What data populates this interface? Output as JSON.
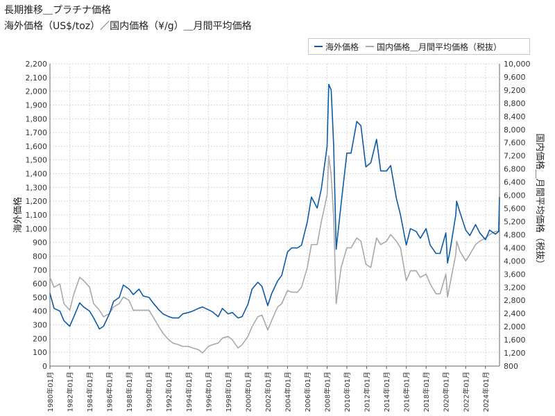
{
  "title_line1": "長期推移＿プラチナ価格",
  "title_line2": "海外価格（US$/toz）／国内価格（¥/g）＿月間平均価格",
  "chart_data": {
    "type": "line",
    "title": "長期推移＿プラチナ価格",
    "subtitle": "海外価格（US$/toz）／国内価格（¥/g）＿月間平均価格",
    "ylabel": "海外価格",
    "y2label": "国内価格＿月間平均価格（税抜）",
    "ylim": [
      0,
      2200
    ],
    "y2lim": [
      800,
      10000
    ],
    "yticks": [
      "0",
      "100",
      "200",
      "300",
      "400",
      "500",
      "600",
      "700",
      "800",
      "900",
      "1,000",
      "1,100",
      "1,200",
      "1,300",
      "1,400",
      "1,500",
      "1,600",
      "1,700",
      "1,800",
      "1,900",
      "2,000",
      "2,100",
      "2,200"
    ],
    "y2ticks": [
      "800",
      "1,200",
      "1,600",
      "2,000",
      "2,400",
      "2,800",
      "3,200",
      "3,600",
      "4,000",
      "4,400",
      "4,800",
      "5,200",
      "5,600",
      "6,000",
      "6,400",
      "6,800",
      "7,200",
      "7,600",
      "8,000",
      "8,400",
      "8,800",
      "9,200",
      "9,600",
      "10,000"
    ],
    "xticks": [
      "1980年01月",
      "1982年01月",
      "1984年01月",
      "1986年01月",
      "1988年01月",
      "1990年01月",
      "1992年01月",
      "1994年01月",
      "1996年01月",
      "1998年01月",
      "2000年01月",
      "2002年01月",
      "2004年01月",
      "2006年01月",
      "2008年01月",
      "2010年01月",
      "2012年01月",
      "2014年01月",
      "2016年01月",
      "2018年01月",
      "2020年01月",
      "2022年01月",
      "2024年01月"
    ],
    "grid": true,
    "legend_position": "top-right",
    "series": [
      {
        "name": "海外価格",
        "axis": "left",
        "color": "#0b5aa6",
        "points": [
          [
            "1980-01",
            530
          ],
          [
            "1980-06",
            420
          ],
          [
            "1981-01",
            400
          ],
          [
            "1981-06",
            330
          ],
          [
            "1982-01",
            290
          ],
          [
            "1982-06",
            360
          ],
          [
            "1983-01",
            460
          ],
          [
            "1983-06",
            430
          ],
          [
            "1984-01",
            400
          ],
          [
            "1984-06",
            350
          ],
          [
            "1985-01",
            270
          ],
          [
            "1985-06",
            290
          ],
          [
            "1986-01",
            380
          ],
          [
            "1986-06",
            470
          ],
          [
            "1987-01",
            500
          ],
          [
            "1987-06",
            590
          ],
          [
            "1988-01",
            560
          ],
          [
            "1988-06",
            520
          ],
          [
            "1989-01",
            560
          ],
          [
            "1989-06",
            510
          ],
          [
            "1990-01",
            500
          ],
          [
            "1990-06",
            460
          ],
          [
            "1991-01",
            410
          ],
          [
            "1991-06",
            380
          ],
          [
            "1992-01",
            360
          ],
          [
            "1992-06",
            350
          ],
          [
            "1993-01",
            350
          ],
          [
            "1993-06",
            380
          ],
          [
            "1994-01",
            390
          ],
          [
            "1994-06",
            400
          ],
          [
            "1995-01",
            420
          ],
          [
            "1995-06",
            430
          ],
          [
            "1996-01",
            410
          ],
          [
            "1996-06",
            395
          ],
          [
            "1997-01",
            360
          ],
          [
            "1997-06",
            420
          ],
          [
            "1998-01",
            380
          ],
          [
            "1998-06",
            390
          ],
          [
            "1999-01",
            350
          ],
          [
            "1999-06",
            360
          ],
          [
            "2000-01",
            450
          ],
          [
            "2000-06",
            560
          ],
          [
            "2001-01",
            610
          ],
          [
            "2001-06",
            580
          ],
          [
            "2002-01",
            440
          ],
          [
            "2002-06",
            530
          ],
          [
            "2003-01",
            620
          ],
          [
            "2003-06",
            660
          ],
          [
            "2004-01",
            830
          ],
          [
            "2004-06",
            860
          ],
          [
            "2005-01",
            860
          ],
          [
            "2005-06",
            880
          ],
          [
            "2006-01",
            1050
          ],
          [
            "2006-06",
            1230
          ],
          [
            "2007-01",
            1150
          ],
          [
            "2007-06",
            1290
          ],
          [
            "2008-01",
            1600
          ],
          [
            "2008-03",
            2050
          ],
          [
            "2008-06",
            2010
          ],
          [
            "2008-09",
            1600
          ],
          [
            "2008-12",
            850
          ],
          [
            "2009-06",
            1180
          ],
          [
            "2010-01",
            1550
          ],
          [
            "2010-06",
            1550
          ],
          [
            "2011-01",
            1780
          ],
          [
            "2011-06",
            1750
          ],
          [
            "2011-12",
            1450
          ],
          [
            "2012-06",
            1480
          ],
          [
            "2013-01",
            1650
          ],
          [
            "2013-06",
            1420
          ],
          [
            "2014-01",
            1420
          ],
          [
            "2014-06",
            1460
          ],
          [
            "2015-01",
            1220
          ],
          [
            "2015-06",
            1100
          ],
          [
            "2016-01",
            880
          ],
          [
            "2016-06",
            1000
          ],
          [
            "2017-01",
            980
          ],
          [
            "2017-06",
            930
          ],
          [
            "2018-01",
            1000
          ],
          [
            "2018-06",
            880
          ],
          [
            "2019-01",
            820
          ],
          [
            "2019-06",
            820
          ],
          [
            "2020-01",
            970
          ],
          [
            "2020-03",
            750
          ],
          [
            "2020-06",
            840
          ],
          [
            "2021-01",
            1100
          ],
          [
            "2021-02",
            1200
          ],
          [
            "2021-06",
            1120
          ],
          [
            "2022-01",
            990
          ],
          [
            "2022-06",
            950
          ],
          [
            "2023-01",
            1030
          ],
          [
            "2023-06",
            970
          ],
          [
            "2024-01",
            920
          ],
          [
            "2024-06",
            990
          ],
          [
            "2025-01",
            960
          ],
          [
            "2025-05",
            980
          ],
          [
            "2025-06",
            1230
          ]
        ]
      },
      {
        "name": "国内価格＿月間平均価格（税抜）",
        "axis": "right",
        "color": "#a9a9a9",
        "points": [
          [
            "1980-01",
            3500
          ],
          [
            "1980-06",
            3200
          ],
          [
            "1981-01",
            3300
          ],
          [
            "1981-06",
            2700
          ],
          [
            "1982-01",
            2500
          ],
          [
            "1982-06",
            3000
          ],
          [
            "1983-01",
            3500
          ],
          [
            "1983-06",
            3400
          ],
          [
            "1984-01",
            3200
          ],
          [
            "1984-06",
            2700
          ],
          [
            "1985-01",
            2500
          ],
          [
            "1985-06",
            2300
          ],
          [
            "1986-01",
            2400
          ],
          [
            "1986-06",
            2600
          ],
          [
            "1987-01",
            2700
          ],
          [
            "1987-06",
            2900
          ],
          [
            "1988-01",
            2800
          ],
          [
            "1988-06",
            2500
          ],
          [
            "1989-01",
            2500
          ],
          [
            "1989-06",
            2500
          ],
          [
            "1990-01",
            2500
          ],
          [
            "1990-06",
            2300
          ],
          [
            "1991-01",
            2000
          ],
          [
            "1991-06",
            1800
          ],
          [
            "1992-01",
            1600
          ],
          [
            "1992-06",
            1500
          ],
          [
            "1993-01",
            1450
          ],
          [
            "1993-06",
            1400
          ],
          [
            "1994-01",
            1400
          ],
          [
            "1994-06",
            1350
          ],
          [
            "1995-01",
            1300
          ],
          [
            "1995-06",
            1200
          ],
          [
            "1996-01",
            1400
          ],
          [
            "1996-06",
            1450
          ],
          [
            "1997-01",
            1500
          ],
          [
            "1997-06",
            1650
          ],
          [
            "1998-01",
            1700
          ],
          [
            "1998-06",
            1600
          ],
          [
            "1999-01",
            1350
          ],
          [
            "1999-06",
            1450
          ],
          [
            "2000-01",
            1700
          ],
          [
            "2000-06",
            2000
          ],
          [
            "2001-01",
            2300
          ],
          [
            "2001-06",
            2350
          ],
          [
            "2002-01",
            1900
          ],
          [
            "2002-06",
            2200
          ],
          [
            "2003-01",
            2600
          ],
          [
            "2003-06",
            2700
          ],
          [
            "2004-01",
            3100
          ],
          [
            "2004-06",
            3050
          ],
          [
            "2005-01",
            3050
          ],
          [
            "2005-06",
            3200
          ],
          [
            "2006-01",
            3800
          ],
          [
            "2006-06",
            4500
          ],
          [
            "2007-01",
            4500
          ],
          [
            "2007-06",
            5200
          ],
          [
            "2008-01",
            6000
          ],
          [
            "2008-03",
            7200
          ],
          [
            "2008-06",
            6600
          ],
          [
            "2008-09",
            5300
          ],
          [
            "2008-12",
            2700
          ],
          [
            "2009-06",
            3800
          ],
          [
            "2010-01",
            4400
          ],
          [
            "2010-06",
            4400
          ],
          [
            "2011-01",
            4700
          ],
          [
            "2011-06",
            4600
          ],
          [
            "2011-12",
            3900
          ],
          [
            "2012-06",
            3800
          ],
          [
            "2013-01",
            4700
          ],
          [
            "2013-06",
            4500
          ],
          [
            "2014-01",
            4600
          ],
          [
            "2014-06",
            4800
          ],
          [
            "2015-01",
            4600
          ],
          [
            "2015-06",
            4400
          ],
          [
            "2016-01",
            3400
          ],
          [
            "2016-06",
            3700
          ],
          [
            "2017-01",
            3700
          ],
          [
            "2017-06",
            3500
          ],
          [
            "2018-01",
            3600
          ],
          [
            "2018-06",
            3300
          ],
          [
            "2019-01",
            3000
          ],
          [
            "2019-06",
            3000
          ],
          [
            "2020-01",
            3600
          ],
          [
            "2020-03",
            2900
          ],
          [
            "2020-06",
            3300
          ],
          [
            "2021-01",
            4200
          ],
          [
            "2021-02",
            4600
          ],
          [
            "2021-06",
            4300
          ],
          [
            "2022-01",
            4000
          ],
          [
            "2022-06",
            4200
          ],
          [
            "2023-01",
            4500
          ],
          [
            "2023-06",
            4600
          ],
          [
            "2024-01",
            4700
          ],
          [
            "2024-06",
            4800
          ],
          [
            "2025-01",
            4900
          ],
          [
            "2025-05",
            4900
          ],
          [
            "2025-06",
            5100
          ]
        ]
      }
    ]
  }
}
